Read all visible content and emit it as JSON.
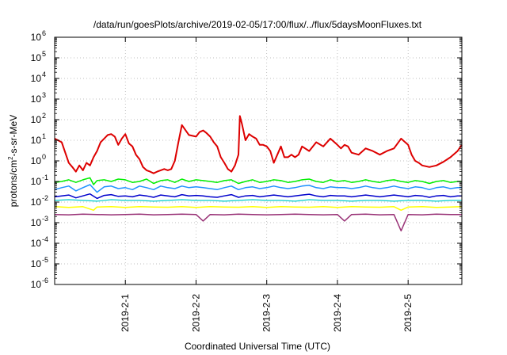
{
  "chart_data": {
    "type": "line",
    "title": "/data/run/goesPlots/archive/2019-02-05/17:00/flux/../flux/5daysMoonFluxes.txt",
    "xlabel": "Coordinated Universal Time (UTC)",
    "ylabel": {
      "base": "protons/cm",
      "sup": "2",
      "rest": "-s-sr-MeV"
    },
    "x_range": [
      0.0,
      5.76
    ],
    "x_ticks": [
      {
        "pos": 1.0,
        "label": "2019-2-1"
      },
      {
        "pos": 2.0,
        "label": "2019-2-2"
      },
      {
        "pos": 3.0,
        "label": "2019-2-3"
      },
      {
        "pos": 4.0,
        "label": "2019-2-4"
      },
      {
        "pos": 5.0,
        "label": "2019-2-5"
      }
    ],
    "y_scale": "log",
    "y_range_exp": [
      -6,
      6
    ],
    "y_ticks": [
      {
        "exp": -6,
        "label": "10",
        "sup": "-6"
      },
      {
        "exp": -5,
        "label": "10",
        "sup": "-5"
      },
      {
        "exp": -4,
        "label": "10",
        "sup": "-4"
      },
      {
        "exp": -3,
        "label": "10",
        "sup": "-3"
      },
      {
        "exp": -2,
        "label": "10",
        "sup": "-2"
      },
      {
        "exp": -1,
        "label": "10",
        "sup": "-1"
      },
      {
        "exp": 0,
        "label": "10",
        "sup": "0"
      },
      {
        "exp": 1,
        "label": "10",
        "sup": "1"
      },
      {
        "exp": 2,
        "label": "10",
        "sup": "2"
      },
      {
        "exp": 3,
        "label": "10",
        "sup": "3"
      },
      {
        "exp": 4,
        "label": "10",
        "sup": "4"
      },
      {
        "exp": 5,
        "label": "10",
        "sup": "5"
      },
      {
        "exp": 6,
        "label": "10",
        "sup": "6"
      }
    ],
    "grid": true,
    "legend": "none",
    "series": [
      {
        "color": "#dd0000",
        "stroke": 2.0,
        "x": [
          0.0,
          0.1,
          0.15,
          0.2,
          0.25,
          0.3,
          0.35,
          0.4,
          0.45,
          0.5,
          0.55,
          0.6,
          0.65,
          0.7,
          0.75,
          0.8,
          0.85,
          0.9,
          0.95,
          1.0,
          1.05,
          1.1,
          1.15,
          1.2,
          1.25,
          1.3,
          1.35,
          1.4,
          1.45,
          1.5,
          1.55,
          1.6,
          1.65,
          1.7,
          1.75,
          1.8,
          1.9,
          2.0,
          2.05,
          2.1,
          2.15,
          2.2,
          2.25,
          2.3,
          2.35,
          2.4,
          2.45,
          2.5,
          2.55,
          2.6,
          2.62,
          2.65,
          2.7,
          2.75,
          2.8,
          2.85,
          2.9,
          2.95,
          3.0,
          3.05,
          3.1,
          3.15,
          3.2,
          3.25,
          3.3,
          3.35,
          3.4,
          3.45,
          3.5,
          3.6,
          3.7,
          3.8,
          3.9,
          4.0,
          4.05,
          4.1,
          4.15,
          4.2,
          4.3,
          4.4,
          4.5,
          4.6,
          4.7,
          4.8,
          4.9,
          5.0,
          5.05,
          5.1,
          5.15,
          5.2,
          5.3,
          5.4,
          5.5,
          5.6,
          5.7,
          5.76
        ],
        "values": [
          12,
          8,
          2.5,
          0.8,
          0.5,
          0.3,
          0.6,
          0.35,
          0.8,
          0.6,
          1.5,
          3,
          8,
          12,
          18,
          20,
          15,
          6,
          12,
          20,
          7,
          5,
          2,
          1.2,
          0.5,
          0.35,
          0.3,
          0.25,
          0.3,
          0.35,
          0.4,
          0.35,
          0.4,
          1,
          8,
          55,
          18,
          15,
          25,
          30,
          22,
          15,
          8,
          5,
          1.5,
          0.8,
          0.4,
          0.3,
          0.6,
          2,
          150,
          60,
          10,
          20,
          15,
          12,
          6,
          6,
          5,
          3,
          0.8,
          2,
          5,
          1.5,
          1.5,
          2,
          1.5,
          2,
          5,
          3,
          8,
          5,
          12,
          6,
          4,
          6,
          5,
          2.5,
          2,
          4,
          3,
          2,
          3,
          4,
          12,
          6,
          2,
          1,
          0.8,
          0.6,
          0.5,
          0.6,
          0.9,
          1.5,
          3,
          6
        ]
      },
      {
        "color": "#00ee00",
        "stroke": 1.5,
        "x": [
          0.0,
          0.1,
          0.2,
          0.3,
          0.4,
          0.5,
          0.55,
          0.6,
          0.7,
          0.8,
          0.9,
          1.0,
          1.1,
          1.2,
          1.3,
          1.4,
          1.5,
          1.6,
          1.7,
          1.8,
          1.9,
          2.0,
          2.1,
          2.2,
          2.3,
          2.4,
          2.5,
          2.6,
          2.7,
          2.8,
          2.9,
          3.0,
          3.1,
          3.2,
          3.3,
          3.4,
          3.5,
          3.6,
          3.7,
          3.8,
          3.9,
          4.0,
          4.1,
          4.2,
          4.3,
          4.4,
          4.5,
          4.6,
          4.7,
          4.8,
          4.9,
          5.0,
          5.1,
          5.2,
          5.3,
          5.4,
          5.5,
          5.6,
          5.7,
          5.76
        ],
        "values": [
          0.09,
          0.1,
          0.12,
          0.09,
          0.12,
          0.15,
          0.07,
          0.11,
          0.12,
          0.1,
          0.13,
          0.12,
          0.09,
          0.1,
          0.13,
          0.08,
          0.11,
          0.12,
          0.09,
          0.13,
          0.1,
          0.12,
          0.11,
          0.1,
          0.09,
          0.11,
          0.12,
          0.08,
          0.1,
          0.12,
          0.09,
          0.1,
          0.12,
          0.11,
          0.09,
          0.1,
          0.12,
          0.13,
          0.1,
          0.09,
          0.12,
          0.1,
          0.11,
          0.09,
          0.1,
          0.12,
          0.1,
          0.09,
          0.11,
          0.12,
          0.1,
          0.09,
          0.11,
          0.1,
          0.08,
          0.1,
          0.11,
          0.09,
          0.1,
          0.1
        ]
      },
      {
        "color": "#1e90ff",
        "stroke": 1.5,
        "x": [
          0.0,
          0.1,
          0.2,
          0.3,
          0.4,
          0.5,
          0.6,
          0.7,
          0.8,
          0.9,
          1.0,
          1.1,
          1.2,
          1.3,
          1.4,
          1.5,
          1.6,
          1.7,
          1.8,
          1.9,
          2.0,
          2.1,
          2.2,
          2.3,
          2.4,
          2.5,
          2.6,
          2.7,
          2.8,
          2.9,
          3.0,
          3.1,
          3.2,
          3.3,
          3.4,
          3.5,
          3.6,
          3.7,
          3.8,
          3.9,
          4.0,
          4.1,
          4.2,
          4.3,
          4.4,
          4.5,
          4.6,
          4.7,
          4.8,
          4.9,
          5.0,
          5.1,
          5.2,
          5.3,
          5.4,
          5.5,
          5.6,
          5.7,
          5.76
        ],
        "values": [
          0.04,
          0.05,
          0.06,
          0.035,
          0.05,
          0.07,
          0.03,
          0.055,
          0.06,
          0.045,
          0.05,
          0.04,
          0.06,
          0.05,
          0.04,
          0.06,
          0.05,
          0.045,
          0.06,
          0.05,
          0.055,
          0.05,
          0.045,
          0.04,
          0.05,
          0.06,
          0.04,
          0.05,
          0.055,
          0.045,
          0.05,
          0.06,
          0.05,
          0.045,
          0.05,
          0.06,
          0.065,
          0.05,
          0.045,
          0.055,
          0.05,
          0.05,
          0.045,
          0.05,
          0.06,
          0.05,
          0.045,
          0.05,
          0.06,
          0.05,
          0.045,
          0.055,
          0.05,
          0.04,
          0.05,
          0.055,
          0.045,
          0.05,
          0.05
        ]
      },
      {
        "color": "#0000cc",
        "stroke": 1.5,
        "x": [
          0.0,
          0.1,
          0.2,
          0.3,
          0.4,
          0.5,
          0.6,
          0.7,
          0.8,
          0.9,
          1.0,
          1.1,
          1.2,
          1.3,
          1.4,
          1.5,
          1.6,
          1.7,
          1.8,
          1.9,
          2.0,
          2.1,
          2.2,
          2.3,
          2.4,
          2.5,
          2.6,
          2.7,
          2.8,
          2.9,
          3.0,
          3.1,
          3.2,
          3.3,
          3.4,
          3.5,
          3.6,
          3.7,
          3.8,
          3.9,
          4.0,
          4.1,
          4.2,
          4.3,
          4.4,
          4.5,
          4.6,
          4.7,
          4.8,
          4.9,
          5.0,
          5.1,
          5.2,
          5.3,
          5.4,
          5.5,
          5.6,
          5.7,
          5.76
        ],
        "values": [
          0.018,
          0.02,
          0.022,
          0.016,
          0.02,
          0.025,
          0.015,
          0.021,
          0.023,
          0.019,
          0.02,
          0.018,
          0.022,
          0.02,
          0.017,
          0.022,
          0.02,
          0.018,
          0.023,
          0.02,
          0.021,
          0.02,
          0.018,
          0.017,
          0.02,
          0.023,
          0.017,
          0.02,
          0.021,
          0.018,
          0.02,
          0.022,
          0.02,
          0.018,
          0.02,
          0.022,
          0.024,
          0.02,
          0.018,
          0.021,
          0.02,
          0.02,
          0.018,
          0.02,
          0.022,
          0.02,
          0.018,
          0.02,
          0.022,
          0.02,
          0.018,
          0.021,
          0.02,
          0.017,
          0.02,
          0.021,
          0.018,
          0.02,
          0.02
        ]
      },
      {
        "color": "#00cccc",
        "stroke": 1.2,
        "x": [
          0.0,
          0.2,
          0.4,
          0.6,
          0.8,
          1.0,
          1.2,
          1.4,
          1.6,
          1.8,
          2.0,
          2.2,
          2.4,
          2.6,
          2.8,
          3.0,
          3.2,
          3.4,
          3.6,
          3.8,
          4.0,
          4.2,
          4.4,
          4.6,
          4.8,
          5.0,
          5.2,
          5.4,
          5.6,
          5.76
        ],
        "values": [
          0.012,
          0.013,
          0.012,
          0.011,
          0.013,
          0.012,
          0.012,
          0.011,
          0.012,
          0.013,
          0.012,
          0.012,
          0.011,
          0.012,
          0.013,
          0.012,
          0.012,
          0.011,
          0.013,
          0.012,
          0.012,
          0.011,
          0.012,
          0.012,
          0.011,
          0.012,
          0.012,
          0.011,
          0.012,
          0.012
        ]
      },
      {
        "color": "#ffff00",
        "stroke": 1.5,
        "x": [
          0.0,
          0.2,
          0.4,
          0.55,
          0.6,
          0.8,
          1.0,
          1.2,
          1.4,
          1.6,
          1.8,
          2.0,
          2.2,
          2.4,
          2.6,
          2.8,
          3.0,
          3.2,
          3.4,
          3.6,
          3.8,
          4.0,
          4.2,
          4.4,
          4.6,
          4.8,
          4.9,
          5.0,
          5.2,
          5.4,
          5.6,
          5.76
        ],
        "values": [
          0.006,
          0.0055,
          0.006,
          0.004,
          0.0058,
          0.006,
          0.0055,
          0.006,
          0.0058,
          0.0056,
          0.006,
          0.0055,
          0.006,
          0.0058,
          0.0056,
          0.006,
          0.0055,
          0.006,
          0.0058,
          0.0056,
          0.006,
          0.0055,
          0.006,
          0.0058,
          0.0056,
          0.006,
          0.004,
          0.0058,
          0.006,
          0.0055,
          0.0058,
          0.006
        ]
      },
      {
        "color": "#993377",
        "stroke": 1.5,
        "x": [
          0.0,
          0.2,
          0.4,
          0.6,
          0.8,
          1.0,
          1.2,
          1.4,
          1.6,
          1.8,
          2.0,
          2.1,
          2.2,
          2.4,
          2.6,
          2.8,
          3.0,
          3.2,
          3.4,
          3.6,
          3.8,
          4.0,
          4.1,
          4.2,
          4.4,
          4.6,
          4.8,
          4.9,
          5.0,
          5.2,
          5.4,
          5.6,
          5.76
        ],
        "values": [
          0.0025,
          0.0024,
          0.0026,
          0.0025,
          0.0024,
          0.0025,
          0.0026,
          0.0024,
          0.0025,
          0.0026,
          0.0025,
          0.0012,
          0.0025,
          0.0024,
          0.0026,
          0.0025,
          0.0024,
          0.0025,
          0.0026,
          0.0025,
          0.0024,
          0.0025,
          0.0012,
          0.0025,
          0.0026,
          0.0024,
          0.0025,
          0.0004,
          0.0025,
          0.0024,
          0.0026,
          0.0025,
          0.0025
        ]
      }
    ]
  }
}
